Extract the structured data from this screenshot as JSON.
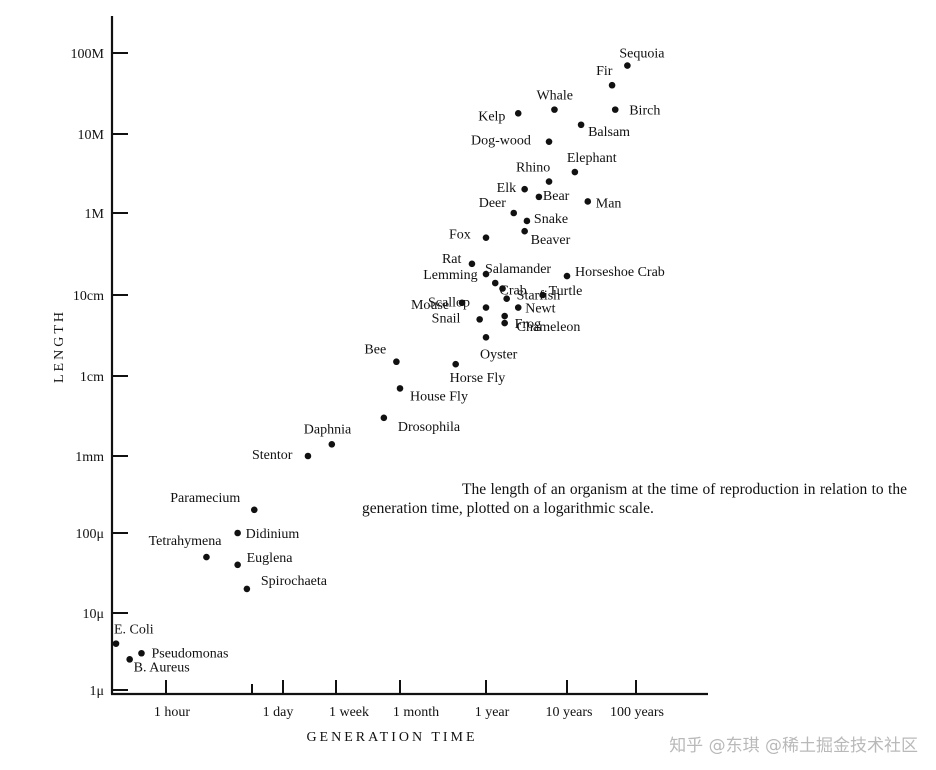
{
  "chart_data": {
    "type": "scatter",
    "title": "",
    "xlabel": "GENERATION TIME",
    "ylabel": "LENGTH",
    "x_scale": "log",
    "y_scale": "log",
    "x_ticks": [
      "1 hour",
      "1 day",
      "1 week",
      "1 month",
      "1 year",
      "10 years",
      "100 years"
    ],
    "y_ticks": [
      "1μ",
      "10μ",
      "100μ",
      "1mm",
      "1cm",
      "10cm",
      "1M",
      "10M",
      "100M"
    ],
    "points": [
      {
        "label": "E. Coli",
        "x": "20 min",
        "y": "4 μ"
      },
      {
        "label": "B. Aureus",
        "x": "27 min",
        "y": "2.5 μ"
      },
      {
        "label": "Pseudomonas",
        "x": "35 min",
        "y": "3 μ"
      },
      {
        "label": "Tetrahymena",
        "x": "3 hours",
        "y": "50 μ"
      },
      {
        "label": "Didinium",
        "x": "7 hours",
        "y": "100 μ"
      },
      {
        "label": "Euglena",
        "x": "7 hours",
        "y": "40 μ"
      },
      {
        "label": "Spirochaeta",
        "x": "9 hours",
        "y": "20 μ"
      },
      {
        "label": "Paramecium",
        "x": "11 hours",
        "y": "200 μ"
      },
      {
        "label": "Stentor",
        "x": "2.5 days",
        "y": "1 mm"
      },
      {
        "label": "Daphnia",
        "x": "6 days",
        "y": "1.4 mm"
      },
      {
        "label": "Drosophila",
        "x": "3 weeks",
        "y": "3 mm"
      },
      {
        "label": "Bee",
        "x": "4 weeks",
        "y": "1.5 cm"
      },
      {
        "label": "House Fly",
        "x": "1 month",
        "y": "7 mm"
      },
      {
        "label": "Horse Fly",
        "x": "5 months",
        "y": "1.4 cm"
      },
      {
        "label": "Oyster",
        "x": "1 year",
        "y": "3 cm"
      },
      {
        "label": "Snail",
        "x": "10 months",
        "y": "5 cm"
      },
      {
        "label": "Scallop",
        "x": "1 year",
        "y": "7 cm"
      },
      {
        "label": "Frog",
        "x": "1.7 years",
        "y": "4.5 cm"
      },
      {
        "label": "Chameleon",
        "x": "1.7 years",
        "y": "5.5 cm"
      },
      {
        "label": "Newt",
        "x": "2.5 years",
        "y": "7 cm"
      },
      {
        "label": "Mouse",
        "x": "6 months",
        "y": "8 cm"
      },
      {
        "label": "Starfish",
        "x": "1.8 years",
        "y": "9 cm"
      },
      {
        "label": "Turtle",
        "x": "5 years",
        "y": "10 cm"
      },
      {
        "label": "Lemming",
        "x": "1.3 years",
        "y": "14 cm"
      },
      {
        "label": "Crab",
        "x": "1.6 years",
        "y": "12 cm"
      },
      {
        "label": "Salamander",
        "x": "1 year",
        "y": "18 cm"
      },
      {
        "label": "Rat",
        "x": "8 months",
        "y": "24 cm"
      },
      {
        "label": "Horseshoe Crab",
        "x": "10 years",
        "y": "17 cm"
      },
      {
        "label": "Fox",
        "x": "1 year",
        "y": "50 cm"
      },
      {
        "label": "Beaver",
        "x": "3 years",
        "y": "60 cm"
      },
      {
        "label": "Deer",
        "x": "2.2 years",
        "y": "1 M"
      },
      {
        "label": "Snake",
        "x": "3.2 years",
        "y": "0.8 M"
      },
      {
        "label": "Elk",
        "x": "3 years",
        "y": "2 M"
      },
      {
        "label": "Bear",
        "x": "4.5 years",
        "y": "1.6 M"
      },
      {
        "label": "Rhino",
        "x": "6 years",
        "y": "2.5 M"
      },
      {
        "label": "Man",
        "x": "20 years",
        "y": "1.4 M"
      },
      {
        "label": "Elephant",
        "x": "13 years",
        "y": "3.3 M"
      },
      {
        "label": "Dog-wood",
        "x": "6 years",
        "y": "8 M"
      },
      {
        "label": "Kelp",
        "x": "2.5 years",
        "y": "18 M"
      },
      {
        "label": "Whale",
        "x": "7 years",
        "y": "20 M"
      },
      {
        "label": "Balsam",
        "x": "16 years",
        "y": "13 M"
      },
      {
        "label": "Birch",
        "x": "50 years",
        "y": "20 M"
      },
      {
        "label": "Fir",
        "x": "45 years",
        "y": "40 M"
      },
      {
        "label": "Sequoia",
        "x": "75 years",
        "y": "70 M"
      }
    ],
    "caption": "The length of an organism at the time of reproduction in relation to the generation time, plotted on a logarithmic scale."
  },
  "watermark": "知乎 @东琪 @稀土掘金技术社区"
}
